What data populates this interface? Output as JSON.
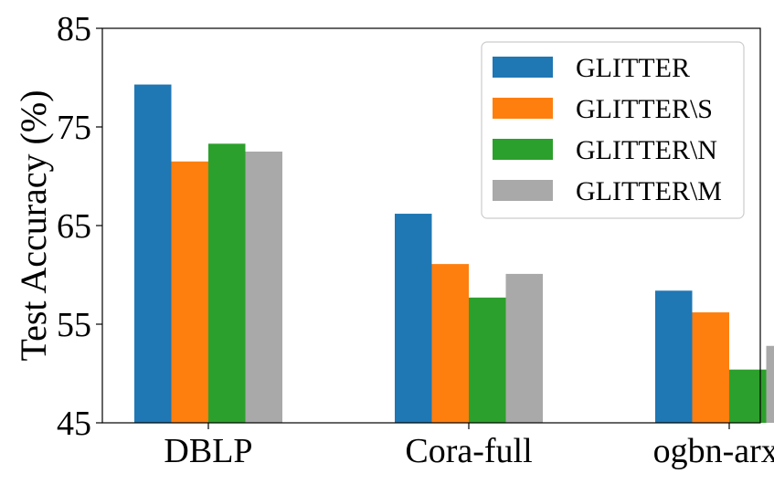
{
  "chart_data": {
    "type": "bar",
    "title": "",
    "xlabel": "",
    "ylabel": "Test Accuracy (%)",
    "ylim": [
      45,
      85
    ],
    "yticks": [
      45,
      55,
      65,
      75,
      85
    ],
    "categories": [
      "DBLP",
      "Cora-full",
      "ogbn-arxiv"
    ],
    "series": [
      {
        "name": "GLITTER",
        "color": "#1f77b4",
        "values": [
          79.3,
          66.2,
          58.4
        ]
      },
      {
        "name": "GLITTER\\S",
        "color": "#ff7f0e",
        "values": [
          71.5,
          61.1,
          56.2
        ]
      },
      {
        "name": "GLITTER\\N",
        "color": "#2ca02c",
        "values": [
          73.3,
          57.7,
          50.4
        ]
      },
      {
        "name": "GLITTER\\M",
        "color": "#a9a9a9",
        "values": [
          72.5,
          60.1,
          52.8
        ]
      }
    ],
    "legend": "top-right",
    "grid": false
  }
}
